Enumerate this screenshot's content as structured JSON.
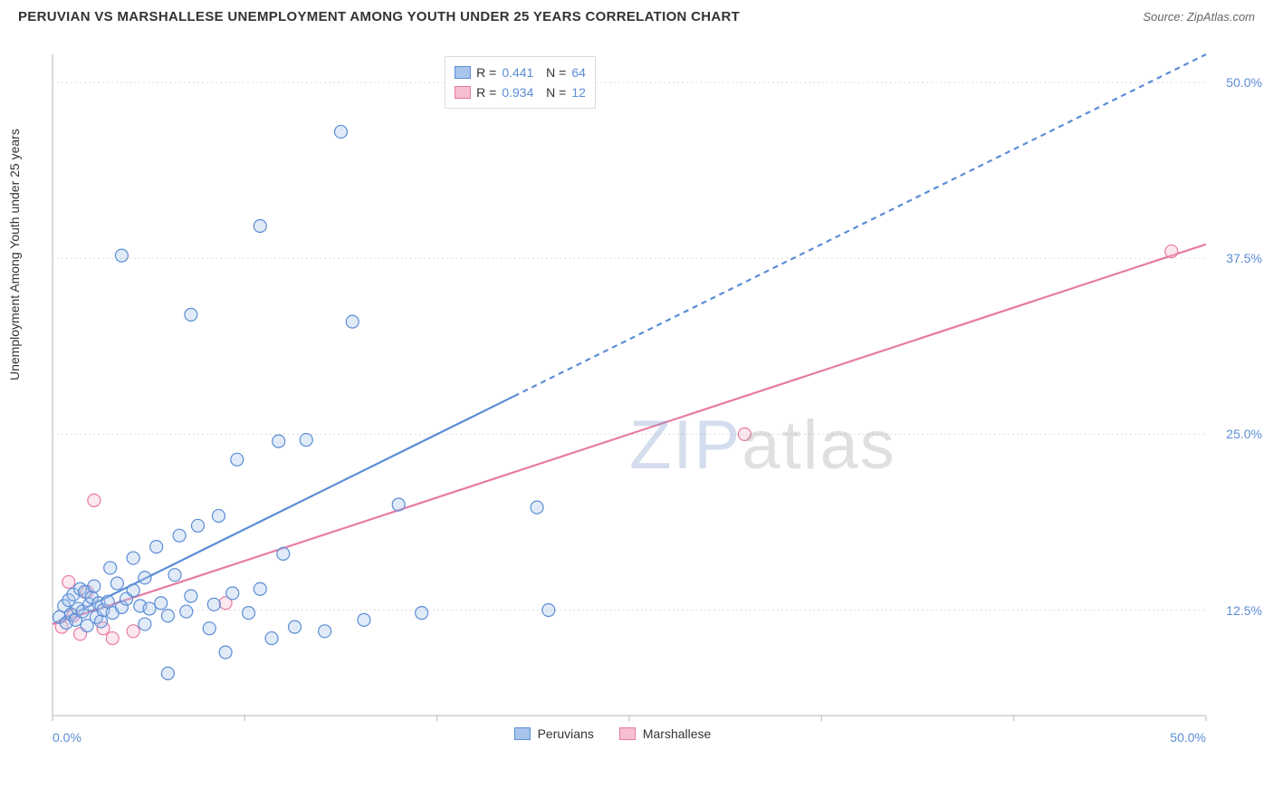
{
  "header": {
    "title": "PERUVIAN VS MARSHALLESE UNEMPLOYMENT AMONG YOUTH UNDER 25 YEARS CORRELATION CHART",
    "source": "Source: ZipAtlas.com"
  },
  "y_axis_label": "Unemployment Among Youth under 25 years",
  "chart": {
    "type": "scatter",
    "background_color": "#ffffff",
    "grid_color": "#dcdcdc",
    "grid_dash": "2,3",
    "axis_color": "#b8b8b8",
    "xlim": [
      0,
      50
    ],
    "ylim": [
      5,
      52
    ],
    "x_ticks": [
      0,
      8.33,
      16.67,
      25,
      33.33,
      41.67,
      50
    ],
    "x_tick_labels": {
      "0": "0.0%",
      "50": "50.0%"
    },
    "y_ticks": [
      12.5,
      25.0,
      37.5,
      50.0
    ],
    "y_tick_label_suffix": "%",
    "tick_label_color": "#5b8dd6",
    "tick_label_fontsize": 14,
    "marker_radius": 7,
    "marker_stroke_width": 1.2,
    "marker_fill_opacity": 0.35,
    "trend_line_width": 2.2
  },
  "series": [
    {
      "key": "peruvians",
      "label": "Peruvians",
      "color_stroke": "#5b8dd6",
      "color_fill": "#a9c5ec",
      "R": "0.441",
      "N": "64",
      "trend": {
        "x1": 0,
        "y1": 11.5,
        "x2": 50,
        "y2": 52,
        "solid_until_x": 20
      },
      "points": [
        [
          0.3,
          12.0
        ],
        [
          0.5,
          12.8
        ],
        [
          0.6,
          11.6
        ],
        [
          0.7,
          13.2
        ],
        [
          0.8,
          12.2
        ],
        [
          0.9,
          13.6
        ],
        [
          1.0,
          11.8
        ],
        [
          1.1,
          12.6
        ],
        [
          1.2,
          14.0
        ],
        [
          1.3,
          12.4
        ],
        [
          1.4,
          13.8
        ],
        [
          1.5,
          11.4
        ],
        [
          1.6,
          12.9
        ],
        [
          1.7,
          13.4
        ],
        [
          1.8,
          14.2
        ],
        [
          1.9,
          12.0
        ],
        [
          2.0,
          13.0
        ],
        [
          2.1,
          11.7
        ],
        [
          2.2,
          12.5
        ],
        [
          2.4,
          13.1
        ],
        [
          2.5,
          15.5
        ],
        [
          2.6,
          12.3
        ],
        [
          2.8,
          14.4
        ],
        [
          3.0,
          12.7
        ],
        [
          3.0,
          37.7
        ],
        [
          3.2,
          13.3
        ],
        [
          3.5,
          13.9
        ],
        [
          3.5,
          16.2
        ],
        [
          3.8,
          12.8
        ],
        [
          4.0,
          11.5
        ],
        [
          4.0,
          14.8
        ],
        [
          4.2,
          12.6
        ],
        [
          4.5,
          17.0
        ],
        [
          4.7,
          13.0
        ],
        [
          5.0,
          8.0
        ],
        [
          5.0,
          12.1
        ],
        [
          5.3,
          15.0
        ],
        [
          5.5,
          17.8
        ],
        [
          5.8,
          12.4
        ],
        [
          6.0,
          13.5
        ],
        [
          6.0,
          33.5
        ],
        [
          6.3,
          18.5
        ],
        [
          6.8,
          11.2
        ],
        [
          7.0,
          12.9
        ],
        [
          7.2,
          19.2
        ],
        [
          7.5,
          9.5
        ],
        [
          7.8,
          13.7
        ],
        [
          8.0,
          23.2
        ],
        [
          8.5,
          12.3
        ],
        [
          9.0,
          14.0
        ],
        [
          9.0,
          39.8
        ],
        [
          9.5,
          10.5
        ],
        [
          9.8,
          24.5
        ],
        [
          10.0,
          16.5
        ],
        [
          10.5,
          11.3
        ],
        [
          11.0,
          24.6
        ],
        [
          11.8,
          11.0
        ],
        [
          12.5,
          46.5
        ],
        [
          13.0,
          33.0
        ],
        [
          13.5,
          11.8
        ],
        [
          15.0,
          20.0
        ],
        [
          16.0,
          12.3
        ],
        [
          21.0,
          19.8
        ],
        [
          21.5,
          12.5
        ]
      ]
    },
    {
      "key": "marshallese",
      "label": "Marshallese",
      "color_stroke": "#e77ba4",
      "color_fill": "#f5bed2",
      "R": "0.934",
      "N": "12",
      "trend": {
        "x1": 0,
        "y1": 11.5,
        "x2": 50,
        "y2": 38.5,
        "solid_until_x": 50
      },
      "points": [
        [
          0.4,
          11.3
        ],
        [
          0.7,
          14.5
        ],
        [
          0.9,
          12.1
        ],
        [
          1.2,
          10.8
        ],
        [
          1.5,
          13.8
        ],
        [
          1.8,
          20.3
        ],
        [
          2.2,
          11.2
        ],
        [
          2.6,
          10.5
        ],
        [
          3.5,
          11.0
        ],
        [
          7.5,
          13.0
        ],
        [
          30.0,
          25.0
        ],
        [
          48.5,
          38.0
        ]
      ]
    }
  ],
  "r_legend": {
    "R_label": "R",
    "N_label": "N",
    "equals": "="
  },
  "watermark": {
    "z": "ZIP",
    "rest": "atlas"
  }
}
